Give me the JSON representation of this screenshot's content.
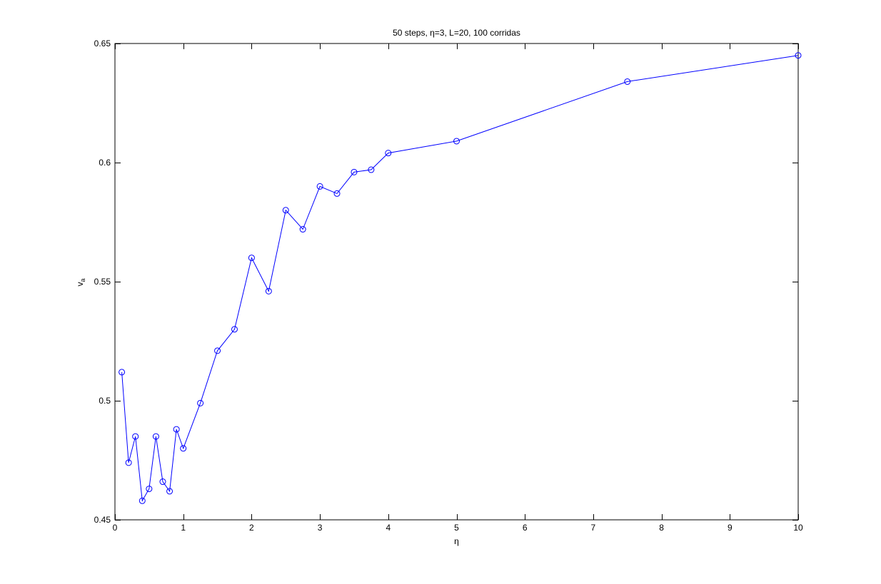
{
  "chart_data": {
    "type": "line",
    "title": "50 steps, η=3, L=20, 100 corridas",
    "xlabel": "η",
    "ylabel": "v",
    "ylabel_subscript": "a",
    "xlim": [
      0,
      10
    ],
    "ylim": [
      0.45,
      0.65
    ],
    "x_ticks": [
      "0",
      "1",
      "2",
      "3",
      "4",
      "5",
      "6",
      "7",
      "8",
      "9",
      "10"
    ],
    "y_ticks": [
      "0.45",
      "0.5",
      "0.55",
      "0.6",
      "0.65"
    ],
    "grid": false,
    "series": [
      {
        "color": "#0000ff",
        "marker": "circle",
        "x": [
          0.1,
          0.2,
          0.3,
          0.4,
          0.5,
          0.6,
          0.7,
          0.8,
          0.9,
          1.0,
          1.25,
          1.5,
          1.75,
          2.0,
          2.25,
          2.5,
          2.75,
          3.0,
          3.25,
          3.5,
          3.75,
          4.0,
          5.0,
          7.5,
          10.0
        ],
        "y": [
          0.512,
          0.474,
          0.485,
          0.458,
          0.463,
          0.485,
          0.466,
          0.462,
          0.488,
          0.48,
          0.499,
          0.521,
          0.53,
          0.56,
          0.546,
          0.58,
          0.572,
          0.59,
          0.587,
          0.596,
          0.597,
          0.604,
          0.609,
          0.634,
          0.645
        ]
      }
    ]
  }
}
